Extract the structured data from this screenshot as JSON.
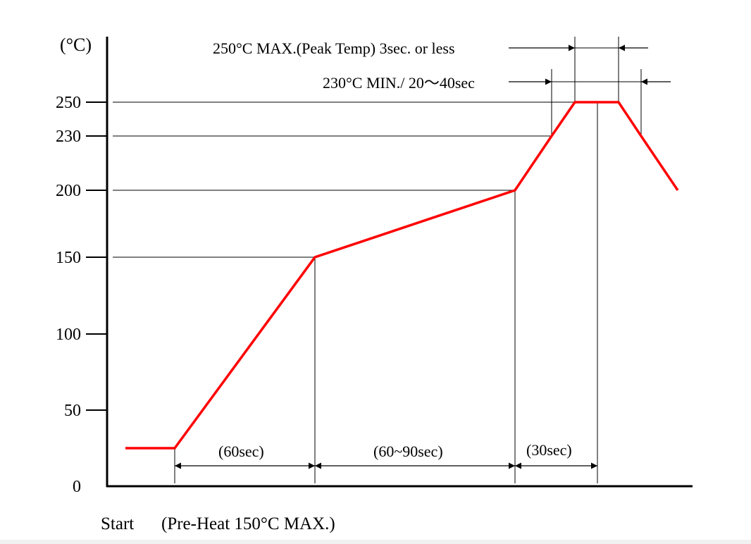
{
  "chart_data": {
    "type": "line",
    "y_unit": "(°C)",
    "ylim": [
      0,
      250
    ],
    "y_ticks": [
      {
        "value": 0,
        "label": "0"
      },
      {
        "value": 50,
        "label": "50"
      },
      {
        "value": 100,
        "label": "100"
      },
      {
        "value": 150,
        "label": "150"
      },
      {
        "value": 200,
        "label": "200"
      },
      {
        "value": 230,
        "label": "230"
      },
      {
        "value": 250,
        "label": "250"
      }
    ],
    "series": [
      {
        "color": "#ff0000",
        "points": [
          {
            "t": -30,
            "temp": 25
          },
          {
            "t": 0,
            "temp": 25
          },
          {
            "t": 60,
            "temp": 150
          },
          {
            "t": 145,
            "temp": 200
          },
          {
            "t": 160,
            "temp": 230
          },
          {
            "t": 170,
            "temp": 250
          },
          {
            "t": 189,
            "temp": 250
          },
          {
            "t": 199,
            "temp": 230
          },
          {
            "t": 215,
            "temp": 200
          }
        ]
      }
    ],
    "annotations": {
      "peak": "250°C MAX.(Peak Temp) 3sec. or less",
      "min": "230°C MIN./ 20～40sec",
      "phase1": "(60sec)",
      "phase2": "(60~90sec)",
      "phase3": "(30sec)"
    },
    "start_label": "Start",
    "preheat_label": "(Pre-Heat 150°C MAX.)"
  }
}
